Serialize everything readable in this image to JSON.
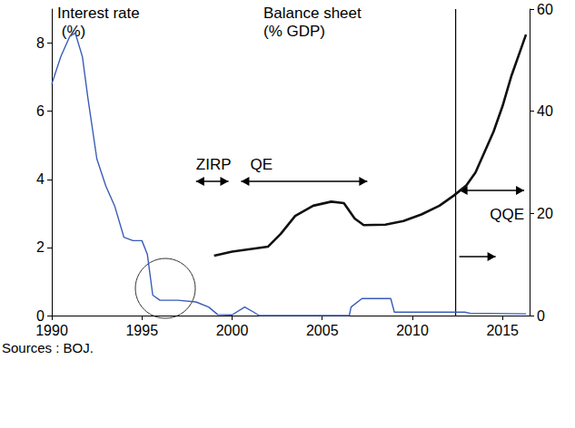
{
  "chart_data": {
    "type": "line",
    "xlim": [
      1990,
      2016.5
    ],
    "xticks": [
      1990,
      1995,
      2000,
      2005,
      2010,
      2015
    ],
    "ylim": [
      0,
      9
    ],
    "yticks": [
      0,
      2,
      4,
      6,
      8
    ],
    "y2lim": [
      0,
      60
    ],
    "y2ticks": [
      0,
      20,
      40,
      60
    ],
    "grid": false,
    "series": [
      {
        "name": "Interest rate (%)",
        "color": "#3a5cb8",
        "x": [
          1990.0,
          1990.5,
          1991.0,
          1991.3,
          1991.7,
          1992.0,
          1992.5,
          1993.0,
          1993.5,
          1994.0,
          1994.5,
          1995.0,
          1995.3,
          1995.6,
          1996.0,
          1997.0,
          1998.0,
          1998.7,
          1999.2,
          2000.0,
          2000.7,
          2001.2,
          2001.5,
          2006.5,
          2006.6,
          2007.2,
          2008.8,
          2009.0,
          2012.9,
          2013.2,
          2016.3
        ],
        "values": [
          6.8,
          7.6,
          8.2,
          8.3,
          7.6,
          6.4,
          4.6,
          3.8,
          3.2,
          2.3,
          2.2,
          2.2,
          1.8,
          0.6,
          0.45,
          0.45,
          0.4,
          0.25,
          0.03,
          0.02,
          0.25,
          0.1,
          0.0,
          0.0,
          0.25,
          0.5,
          0.5,
          0.1,
          0.1,
          0.07,
          0.05
        ]
      },
      {
        "name": "Balance sheet (% GDP)",
        "color": "#111111",
        "axis": "y2",
        "x": [
          1999.0,
          2000.0,
          2001.0,
          2002.0,
          2002.7,
          2003.5,
          2004.5,
          2005.5,
          2006.2,
          2006.8,
          2007.3,
          2008.5,
          2009.5,
          2010.5,
          2011.5,
          2012.3,
          2013.0,
          2013.5,
          2014.0,
          2014.5,
          2015.0,
          2015.5,
          2016.0,
          2016.3
        ],
        "values": [
          11.7,
          12.5,
          13.0,
          13.5,
          16,
          19.5,
          21.5,
          22.3,
          22.0,
          19,
          17.7,
          17.8,
          18.5,
          19.8,
          21.5,
          23.5,
          25.5,
          28,
          32,
          36,
          41,
          47,
          52,
          55
        ]
      }
    ],
    "periods": [
      {
        "label": "ZIRP",
        "start": 1998.0,
        "end": 1999.8
      },
      {
        "label": "QE",
        "start": 2000.5,
        "end": 2007.5
      },
      {
        "label": "QQE",
        "start": 2012.4,
        "end": 2016.2
      }
    ],
    "source": "Sources : BOJ."
  }
}
